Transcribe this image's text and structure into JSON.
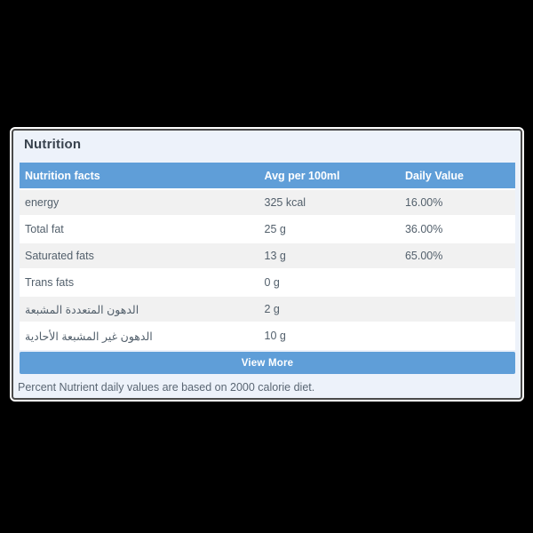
{
  "page": {
    "background_color": "#000000"
  },
  "card": {
    "title": "Nutrition",
    "accent_color": "#5f9ed8",
    "background_color": "#edf2fa",
    "view_more_label": "View More",
    "footer_note": "Percent Nutrient daily values are based on 2000 calorie diet."
  },
  "table": {
    "columns": [
      "Nutrition facts",
      "Avg per 100ml",
      "Daily Value"
    ],
    "rows": [
      {
        "name": "energy",
        "avg": "325 kcal",
        "daily": "16.00%"
      },
      {
        "name": "Total fat",
        "avg": "25 g",
        "daily": "36.00%"
      },
      {
        "name": "Saturated fats",
        "avg": "13 g",
        "daily": "65.00%"
      },
      {
        "name": "Trans fats",
        "avg": "0 g",
        "daily": ""
      },
      {
        "name": "الدهون المتعددة المشبعة",
        "avg": "2 g",
        "daily": ""
      },
      {
        "name": "الدهون غير المشبعة الأحادية",
        "avg": "10 g",
        "daily": ""
      }
    ]
  }
}
